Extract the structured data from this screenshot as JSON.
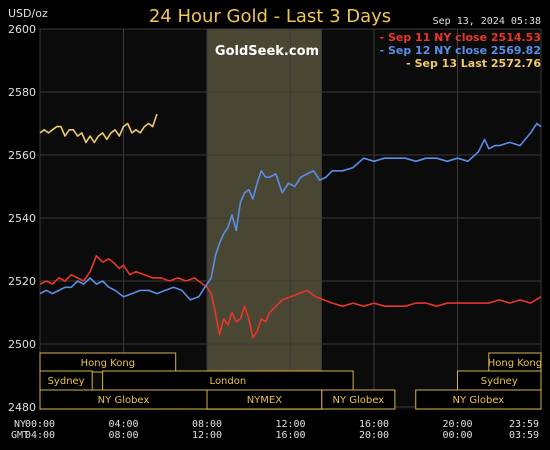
{
  "header": {
    "unit": "USD/oz",
    "title": "24 Hour Gold - Last 3 Days",
    "timestamp": "Sep 13, 2024  05:38",
    "watermark": "GoldSeek.com"
  },
  "colors": {
    "background": "#000000",
    "plot_bg": "#0b0b0b",
    "grid": "#3a3a3a",
    "axis_text": "#e0e0e0",
    "title_text": "#f0c850",
    "nymex_band": "#4a4634",
    "session_border": "#d4b34a",
    "session_text": "#e8c44a"
  },
  "sessions": [
    {
      "label": "Hong Kong",
      "start": 0.0,
      "end": 6.5,
      "row": 0
    },
    {
      "label": "Hong Kong",
      "start": 21.5,
      "end": 24.0,
      "row": 0
    },
    {
      "label": "Sydney",
      "start": 0.0,
      "end": 2.5,
      "row": 1
    },
    {
      "label": "London",
      "start": 3.0,
      "end": 15.0,
      "row": 1
    },
    {
      "label": "Sydney",
      "start": 20.0,
      "end": 24.0,
      "row": 1
    },
    {
      "label": "NY Globex",
      "start": 0.0,
      "end": 8.0,
      "row": 2
    },
    {
      "label": "NYMEX",
      "start": 8.0,
      "end": 13.5,
      "row": 2
    },
    {
      "label": "NY Globex",
      "start": 13.5,
      "end": 17.0,
      "row": 2
    },
    {
      "label": "NY Globex",
      "start": 18.0,
      "end": 24.0,
      "row": 2
    }
  ],
  "time_axis": {
    "row_labels": [
      "NY",
      "GMT"
    ],
    "ny_ticks": [
      "00:00",
      "04:00",
      "08:00",
      "12:00",
      "16:00",
      "20:00",
      "23:59"
    ],
    "gmt_ticks": [
      "04:00",
      "08:00",
      "12:00",
      "16:00",
      "20:00",
      "00:00",
      "03:59"
    ]
  },
  "chart_data": {
    "type": "line",
    "title": "24 Hour Gold - Last 3 Days",
    "ylabel": "USD/oz",
    "xlabel": "",
    "ylim": [
      2480,
      2600
    ],
    "xlim": [
      0,
      24
    ],
    "yticks": [
      2480,
      2500,
      2520,
      2540,
      2560,
      2580,
      2600
    ],
    "grid": true,
    "legend_position": "top-right",
    "shaded_region": {
      "label": "NYMEX",
      "start": 8.0,
      "end": 13.5
    },
    "series": [
      {
        "name": "Sep 11 NY close",
        "legend_value": "2514.53",
        "color": "#e8372a",
        "x": [
          0,
          0.3,
          0.6,
          0.9,
          1.2,
          1.5,
          1.8,
          2.1,
          2.4,
          2.7,
          3.0,
          3.3,
          3.5,
          3.8,
          4.0,
          4.3,
          4.6,
          5.0,
          5.4,
          5.8,
          6.2,
          6.6,
          7.0,
          7.4,
          7.8,
          8.0,
          8.2,
          8.4,
          8.6,
          8.8,
          9.0,
          9.2,
          9.4,
          9.6,
          9.8,
          10.0,
          10.2,
          10.4,
          10.6,
          10.8,
          11.0,
          11.3,
          11.6,
          12.0,
          12.4,
          12.8,
          13.2,
          13.6,
          14.0,
          14.5,
          15.0,
          15.5,
          16.0,
          16.5,
          17.0,
          17.5,
          18.0,
          18.5,
          19.0,
          19.5,
          20.0,
          20.5,
          21.0,
          21.5,
          22.0,
          22.5,
          23.0,
          23.5,
          24.0
        ],
        "y": [
          2519,
          2520,
          2519,
          2521,
          2520,
          2522,
          2521,
          2520,
          2523,
          2528,
          2526,
          2527,
          2526,
          2524,
          2525,
          2522,
          2523,
          2522,
          2521,
          2521,
          2520,
          2521,
          2520,
          2521,
          2519,
          2518,
          2516,
          2510,
          2503,
          2508,
          2506,
          2510,
          2507,
          2508,
          2512,
          2508,
          2502,
          2504,
          2508,
          2507,
          2510,
          2512,
          2514,
          2515,
          2516,
          2517,
          2515,
          2514,
          2513,
          2512,
          2513,
          2512,
          2513,
          2512,
          2512,
          2512,
          2513,
          2513,
          2512,
          2513,
          2513,
          2513,
          2513,
          2513,
          2514,
          2513,
          2514,
          2513,
          2515
        ]
      },
      {
        "name": "Sep 12 NY close",
        "legend_value": "2569.82",
        "color": "#5b8ee6",
        "x": [
          0,
          0.3,
          0.6,
          0.9,
          1.2,
          1.5,
          1.8,
          2.1,
          2.4,
          2.7,
          3.0,
          3.3,
          3.6,
          4.0,
          4.4,
          4.8,
          5.2,
          5.6,
          6.0,
          6.4,
          6.8,
          7.2,
          7.6,
          8.0,
          8.2,
          8.4,
          8.6,
          8.8,
          9.0,
          9.2,
          9.4,
          9.6,
          9.8,
          10.0,
          10.2,
          10.4,
          10.6,
          10.8,
          11.0,
          11.3,
          11.6,
          11.9,
          12.2,
          12.5,
          12.8,
          13.1,
          13.4,
          13.7,
          14.0,
          14.5,
          15.0,
          15.5,
          16.0,
          16.5,
          17.0,
          17.5,
          18.0,
          18.5,
          19.0,
          19.5,
          20.0,
          20.5,
          21.0,
          21.3,
          21.5,
          21.8,
          22.0,
          22.5,
          23.0,
          23.5,
          23.8,
          24.0
        ],
        "y": [
          2516,
          2517,
          2516,
          2517,
          2518,
          2518,
          2520,
          2519,
          2521,
          2519,
          2520,
          2518,
          2517,
          2515,
          2516,
          2517,
          2517,
          2516,
          2517,
          2518,
          2517,
          2514,
          2515,
          2519,
          2521,
          2528,
          2532,
          2535,
          2537,
          2541,
          2536,
          2545,
          2548,
          2549,
          2546,
          2551,
          2555,
          2553,
          2553,
          2554,
          2548,
          2551,
          2550,
          2553,
          2554,
          2555,
          2552,
          2553,
          2555,
          2555,
          2556,
          2559,
          2558,
          2559,
          2559,
          2559,
          2558,
          2559,
          2559,
          2558,
          2559,
          2558,
          2561,
          2565,
          2562,
          2563,
          2563,
          2564,
          2563,
          2567,
          2570,
          2569
        ]
      },
      {
        "name": "Sep 13 Last",
        "legend_value": "2572.76",
        "color": "#f0c870",
        "x": [
          0,
          0.2,
          0.4,
          0.6,
          0.8,
          1.0,
          1.2,
          1.4,
          1.6,
          1.8,
          2.0,
          2.2,
          2.4,
          2.6,
          2.8,
          3.0,
          3.2,
          3.4,
          3.6,
          3.8,
          4.0,
          4.2,
          4.4,
          4.6,
          4.8,
          5.0,
          5.2,
          5.4,
          5.6
        ],
        "y": [
          2567,
          2568,
          2567,
          2568,
          2569,
          2569,
          2566,
          2568,
          2568,
          2566,
          2567,
          2564,
          2566,
          2564,
          2566,
          2567,
          2565,
          2567,
          2568,
          2566,
          2569,
          2570,
          2567,
          2568,
          2567,
          2569,
          2570,
          2569,
          2573
        ]
      }
    ]
  }
}
